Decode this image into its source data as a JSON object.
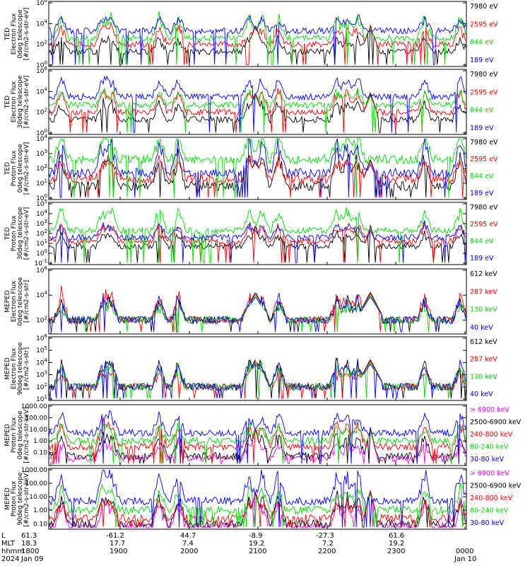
{
  "chart_data": [
    {
      "type": "line",
      "ylabel": [
        "TED",
        "Electron Flux",
        "0deg telescope",
        "[#/cm2-s-str-eV]"
      ],
      "yscale": "log",
      "ylim": [
        1,
        1000000
      ],
      "ytick_labels": [
        "10^0",
        "10^2",
        "10^4",
        "10^6"
      ],
      "ytick_values": [
        1,
        100,
        10000,
        1000000
      ],
      "series": [
        {
          "name": "7980 eV",
          "color": "#000000",
          "level": 1.3
        },
        {
          "name": "2595 eV",
          "color": "#ff0000",
          "level": 2.0
        },
        {
          "name": "844 eV",
          "color": "#00dd00",
          "level": 2.6
        },
        {
          "name": "189 eV",
          "color": "#0000ff",
          "level": 3.3
        }
      ]
    },
    {
      "type": "line",
      "ylabel": [
        "TED",
        "Electron Flux",
        "30deg telescope",
        "[#/cm2-s-str-eV]"
      ],
      "yscale": "log",
      "ylim": [
        1,
        1000000
      ],
      "ytick_labels": [
        "10^0",
        "10^2",
        "10^4",
        "10^6"
      ],
      "ytick_values": [
        1,
        100,
        10000,
        1000000
      ],
      "series": [
        {
          "name": "7980 eV",
          "color": "#000000",
          "level": 1.3
        },
        {
          "name": "2595 eV",
          "color": "#ff0000",
          "level": 2.0
        },
        {
          "name": "844 eV",
          "color": "#00dd00",
          "level": 2.7
        },
        {
          "name": "189 eV",
          "color": "#0000ff",
          "level": 3.5
        }
      ]
    },
    {
      "type": "line",
      "ylabel": [
        "TED",
        "Proton Flux",
        "0deg telescope",
        "[#/cm2-s-str-eV]"
      ],
      "yscale": "log",
      "ylim": [
        1,
        10000
      ],
      "ytick_labels": [
        "10^0",
        "10^1",
        "10^2",
        "10^3",
        "10^4"
      ],
      "ytick_values": [
        1,
        10,
        100,
        1000,
        10000
      ],
      "series": [
        {
          "name": "7980 eV",
          "color": "#000000",
          "level": 0.8
        },
        {
          "name": "2595 eV",
          "color": "#ff0000",
          "level": 1.3
        },
        {
          "name": "844 eV",
          "color": "#00dd00",
          "level": 2.6
        },
        {
          "name": "189 eV",
          "color": "#0000ff",
          "level": 1.7
        }
      ]
    },
    {
      "type": "line",
      "ylabel": [
        "TED",
        "Proton Flux",
        "30deg telescope",
        "[#/cm2-s-str-eV]"
      ],
      "yscale": "log",
      "ylim": [
        0.1,
        100000
      ],
      "ytick_labels": [
        "10^-1",
        "10^0",
        "10^1",
        "10^2",
        "10^3",
        "10^4",
        "10^5"
      ],
      "ytick_values": [
        0.1,
        1,
        10,
        100,
        1000,
        10000,
        100000
      ],
      "series": [
        {
          "name": "7980 eV",
          "color": "#000000",
          "level": 0.7
        },
        {
          "name": "2595 eV",
          "color": "#ff0000",
          "level": 1.2
        },
        {
          "name": "844 eV",
          "color": "#00dd00",
          "level": 2.3
        },
        {
          "name": "189 eV",
          "color": "#0000ff",
          "level": 1.6
        }
      ]
    },
    {
      "type": "line",
      "ylabel": [
        "MEPED",
        "Electron Flux",
        "0deg telescope",
        "[#/cm2-s-str]"
      ],
      "yscale": "log",
      "ylim": [
        10,
        1000000
      ],
      "ytick_labels": [
        "10^2",
        "10^4",
        "10^6"
      ],
      "ytick_values": [
        100,
        10000,
        1000000
      ],
      "series": [
        {
          "name": "612 keV",
          "color": "#000000",
          "level": 2.0
        },
        {
          "name": "287 keV",
          "color": "#ff0000",
          "level": 2.0
        },
        {
          "name": "130 keV",
          "color": "#00dd00",
          "level": 2.0
        },
        {
          "name": "40 keV",
          "color": "#0000ff",
          "level": 2.0
        }
      ]
    },
    {
      "type": "line",
      "ylabel": [
        "MEPED",
        "Electron Flux",
        "90deg telescope",
        "[#/cm2-s-str]"
      ],
      "yscale": "log",
      "ylim": [
        10,
        1000000
      ],
      "ytick_labels": [
        "10^1",
        "10^2",
        "10^3",
        "10^4",
        "10^5",
        "10^6"
      ],
      "ytick_values": [
        10,
        100,
        1000,
        10000,
        100000,
        1000000
      ],
      "series": [
        {
          "name": "612 keV",
          "color": "#000000",
          "level": 2.0
        },
        {
          "name": "287 keV",
          "color": "#ff0000",
          "level": 2.0
        },
        {
          "name": "130 keV",
          "color": "#00dd00",
          "level": 2.0
        },
        {
          "name": "40 keV",
          "color": "#0000ff",
          "level": 2.0
        }
      ]
    },
    {
      "type": "line",
      "ylabel": [
        "MEPED",
        "Proton Flux",
        "0deg telescope",
        "[#/cm2-s-str-keV]"
      ],
      "yscale": "log",
      "ylim": [
        0.01,
        1000
      ],
      "ytick_labels": [
        "0.10",
        "1.00",
        "10.00",
        "100.00",
        "1000.00"
      ],
      "ytick_values": [
        0.1,
        1,
        10,
        100,
        1000
      ],
      "series": [
        {
          "name": "> 6900 keV",
          "color": "#ff00ff",
          "level": -1.5
        },
        {
          "name": "2500-6900 keV",
          "color": "#000000",
          "level": -1.3
        },
        {
          "name": "240-800 keV",
          "color": "#ff0000",
          "level": -0.5
        },
        {
          "name": "80-240 keV",
          "color": "#00dd00",
          "level": 0.0
        },
        {
          "name": "30-80 keV",
          "color": "#0000ff",
          "level": 0.7
        }
      ]
    },
    {
      "type": "line",
      "ylabel": [
        "MEPED",
        "Proton Flux",
        "90deg telescope",
        "[#/cm2-s-str-keV]"
      ],
      "yscale": "log",
      "ylim": [
        0.05,
        1000
      ],
      "ytick_labels": [
        "0.10",
        "1.00",
        "10.00",
        "100.00",
        "1000.00"
      ],
      "ytick_values": [
        0.1,
        1,
        10,
        100,
        1000
      ],
      "series": [
        {
          "name": "> 6900 keV",
          "color": "#ff00ff",
          "level": -1.2
        },
        {
          "name": "2500-6900 keV",
          "color": "#000000",
          "level": -1.0
        },
        {
          "name": "240-800 keV",
          "color": "#ff0000",
          "level": -0.6
        },
        {
          "name": "80-240 keV",
          "color": "#00dd00",
          "level": 0.0
        },
        {
          "name": "30-80 keV",
          "color": "#0000ff",
          "level": 0.7
        }
      ]
    }
  ],
  "time_axis": {
    "row_labels": [
      "L",
      "MLT",
      "hhmm",
      "2024"
    ],
    "ticks": [
      {
        "L": "61.3",
        "MLT": "18.3",
        "hhmm": "1800",
        "date": "Jan 09"
      },
      {
        "L": "-61.2",
        "MLT": "17.7",
        "hhmm": "1900",
        "date": ""
      },
      {
        "L": "44.7",
        "MLT": "7.4",
        "hhmm": "2000",
        "date": ""
      },
      {
        "L": "-8.9",
        "MLT": "19.2",
        "hhmm": "2100",
        "date": ""
      },
      {
        "L": "-27.3",
        "MLT": "7.2",
        "hhmm": "2200",
        "date": ""
      },
      {
        "L": "61.6",
        "MLT": "19.2",
        "hhmm": "2300",
        "date": ""
      },
      {
        "L": "",
        "MLT": "",
        "hhmm": "0000",
        "date": "Jan 10"
      }
    ]
  }
}
